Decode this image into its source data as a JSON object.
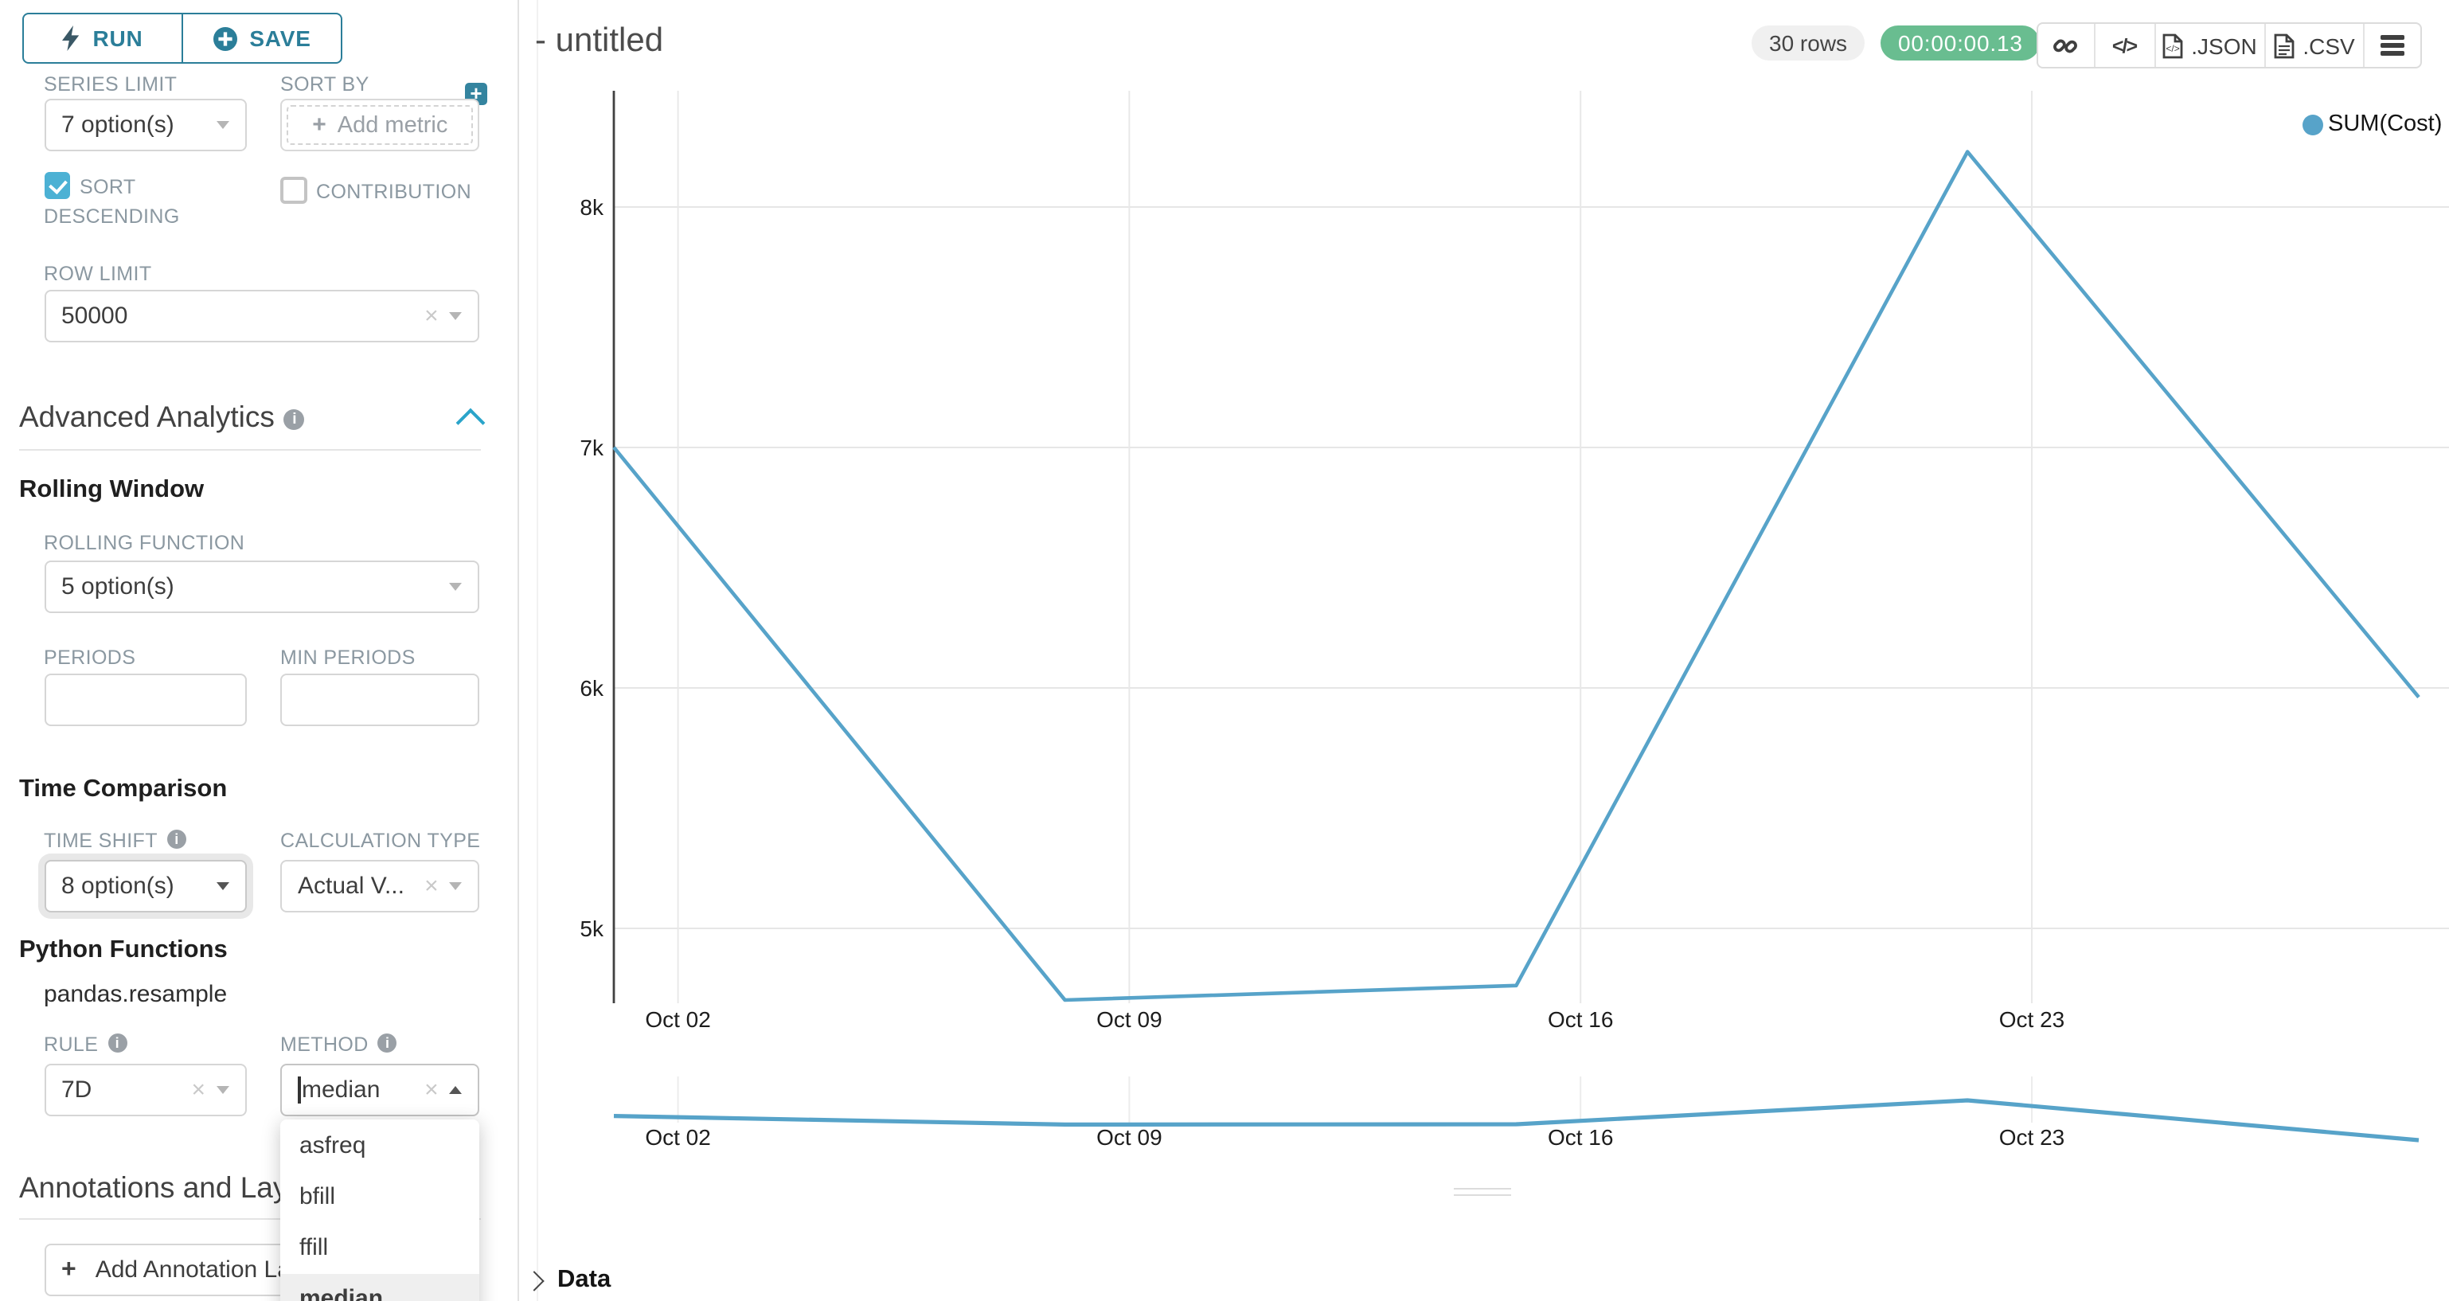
{
  "left_panel": {
    "run_button": "RUN",
    "save_button": "SAVE",
    "series_limit": {
      "label": "SERIES LIMIT",
      "value": "7 option(s)"
    },
    "sort_by": {
      "label": "SORT BY",
      "add_metric": "Add metric"
    },
    "sort_descending": {
      "label": "SORT DESCENDING",
      "checked": true
    },
    "contribution": {
      "label": "CONTRIBUTION",
      "checked": false
    },
    "row_limit": {
      "label": "ROW LIMIT",
      "value": "50000"
    },
    "advanced_analytics_title": "Advanced Analytics",
    "rolling_window": {
      "title": "Rolling Window",
      "rolling_function_label": "ROLLING FUNCTION",
      "rolling_function_value": "5 option(s)",
      "periods_label": "PERIODS",
      "periods_value": "",
      "min_periods_label": "MIN PERIODS",
      "min_periods_value": ""
    },
    "time_comparison": {
      "title": "Time Comparison",
      "time_shift_label": "TIME SHIFT",
      "time_shift_value": "8 option(s)",
      "calculation_type_label": "CALCULATION TYPE",
      "calculation_type_value": "Actual V..."
    },
    "python_functions": {
      "title": "Python Functions",
      "subtitle": "pandas.resample",
      "rule_label": "RULE",
      "rule_value": "7D",
      "method_label": "METHOD",
      "method_value": "median",
      "method_options": [
        "asfreq",
        "bfill",
        "ffill",
        "median"
      ],
      "method_selected": "median"
    },
    "annotations": {
      "title": "Annotations and Layers",
      "add_button": "Add Annotation Layer"
    }
  },
  "header": {
    "title": "- untitled",
    "rows_badge": "30 rows",
    "timer_badge": "00:00:00.13",
    "code_glyph": "</>",
    "json_button": ".JSON",
    "csv_button": ".CSV"
  },
  "chart_data": {
    "type": "line",
    "title": "",
    "legend": [
      {
        "label": "SUM(Cost)",
        "color": "#57a3c9"
      }
    ],
    "x": [
      "Oct 01",
      "Oct 08",
      "Oct 15",
      "Oct 22",
      "Oct 29"
    ],
    "series": [
      {
        "name": "SUM(Cost)",
        "values": [
          7000,
          4700,
          4760,
          8230,
          5960
        ]
      }
    ],
    "x_tick_labels": [
      "Oct 02",
      "Oct 09",
      "Oct 16",
      "Oct 23"
    ],
    "y_tick_labels": [
      "8k",
      "7k",
      "6k",
      "5k"
    ],
    "y_tick_values": [
      8000,
      7000,
      6000,
      5000
    ],
    "ylim": [
      4450,
      8480
    ],
    "grid": true,
    "legend_position": "top-right",
    "line_color": "#57a3c9",
    "preview": {
      "note": "condensed context strip of same series",
      "values": [
        7000,
        4700,
        4760,
        8230,
        5960
      ]
    }
  },
  "data_panel": {
    "title": "Data"
  },
  "colors": {
    "primary": "#2b7e99",
    "checkbox": "#4cb1d4",
    "line": "#57a3c9",
    "timer_green": "#69bd90",
    "accent_chevron": "#2aa4ca"
  }
}
